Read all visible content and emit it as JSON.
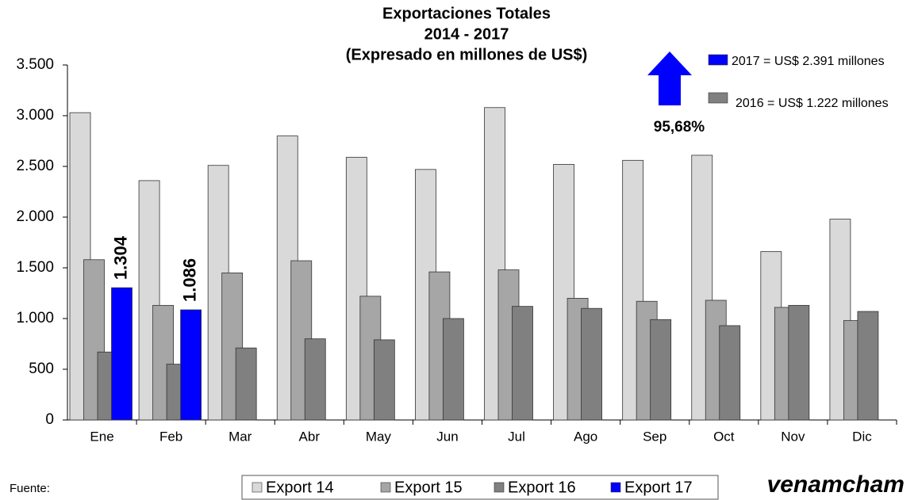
{
  "chart_data": {
    "type": "bar",
    "title": [
      "Exportaciones Totales",
      "2014 - 2017",
      "(Expresado en millones de US$)"
    ],
    "categories": [
      "Ene",
      "Feb",
      "Mar",
      "Abr",
      "May",
      "Jun",
      "Jul",
      "Ago",
      "Sep",
      "Oct",
      "Nov",
      "Dic"
    ],
    "series": [
      {
        "name": "Export 14",
        "color": "#d9d9d9",
        "values": [
          3030,
          2360,
          2510,
          2800,
          2590,
          2470,
          3080,
          2520,
          2560,
          2610,
          1660,
          1980
        ]
      },
      {
        "name": "Export 15",
        "color": "#a6a6a6",
        "values": [
          1580,
          1130,
          1450,
          1570,
          1220,
          1460,
          1480,
          1200,
          1170,
          1180,
          1110,
          980
        ]
      },
      {
        "name": "Export 16",
        "color": "#808080",
        "values": [
          670,
          550,
          710,
          800,
          790,
          1000,
          1120,
          1100,
          990,
          930,
          1130,
          1070
        ]
      },
      {
        "name": "Export 17",
        "color": "#0000ff",
        "values": [
          1304,
          1086,
          null,
          null,
          null,
          null,
          null,
          null,
          null,
          null,
          null,
          null
        ],
        "value_labels": [
          "1.304",
          "1.086",
          null,
          null,
          null,
          null,
          null,
          null,
          null,
          null,
          null,
          null
        ]
      }
    ],
    "ylim": [
      0,
      3500
    ],
    "yticks": [
      0,
      500,
      {
        "value": 1000,
        "label": "1.000"
      },
      {
        "value": 1500,
        "label": "1.500"
      },
      {
        "value": 2000,
        "label": "2.000"
      },
      {
        "value": 2500,
        "label": "2.500"
      },
      {
        "value": 3000,
        "label": "3.000"
      },
      {
        "value": 3500,
        "label": "3.500"
      }
    ],
    "legend": "bottom",
    "increase_label": "95,68%",
    "increase_color": "#0000ff",
    "key": [
      {
        "label": "2017 = US$ 2.391 millones",
        "color": "#0000ff"
      },
      {
        "label": "2016 = US$ 1.222 millones",
        "color": "#808080"
      }
    ],
    "source": "Fuente:",
    "logo": "venamcham"
  }
}
